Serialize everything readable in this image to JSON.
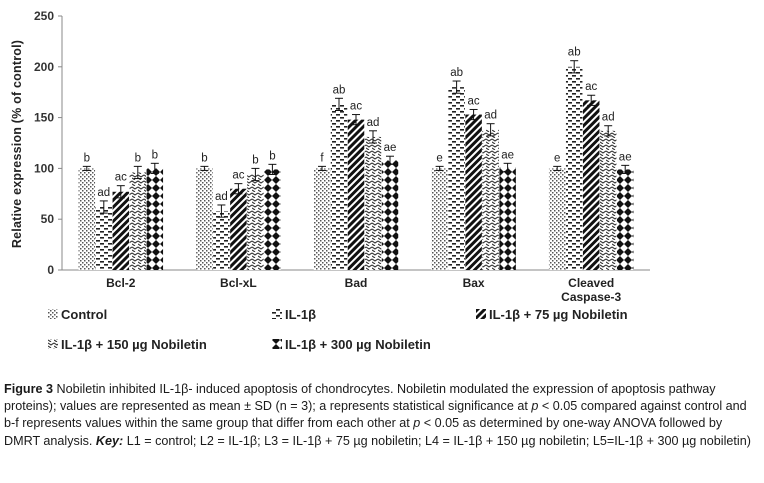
{
  "chart_data": {
    "type": "bar",
    "title": "",
    "xlabel": "",
    "ylabel": "Relative expression (% of control)",
    "ylim": [
      0,
      250
    ],
    "yticks": [
      0,
      50,
      100,
      150,
      200,
      250
    ],
    "grid": false,
    "legend_position": "bottom",
    "categories": [
      "Bcl-2",
      "Bcl-xL",
      "Bad",
      "Bax",
      "Cleaved Caspase-3"
    ],
    "series": [
      {
        "name": "Control",
        "values": [
          100,
          100,
          100,
          100,
          100
        ],
        "errors": [
          2,
          2,
          2,
          2,
          2
        ],
        "labels": [
          "b",
          "b",
          "f",
          "e",
          "e"
        ],
        "pattern": "dots"
      },
      {
        "name": "IL-1β",
        "values": [
          62,
          58,
          163,
          180,
          200
        ],
        "errors": [
          6,
          6,
          6,
          6,
          6
        ],
        "labels": [
          "ad",
          "ad",
          "ab",
          "ab",
          "ab"
        ],
        "pattern": "hdash"
      },
      {
        "name": "IL-1β + 75 µg Nobiletin",
        "values": [
          77,
          80,
          148,
          153,
          167
        ],
        "errors": [
          6,
          5,
          5,
          5,
          5
        ],
        "labels": [
          "ac",
          "ac",
          "ac",
          "ac",
          "ac"
        ],
        "pattern": "diag"
      },
      {
        "name": "IL-1β + 150 µg Nobiletin",
        "values": [
          96,
          94,
          131,
          138,
          137
        ],
        "errors": [
          6,
          6,
          6,
          6,
          5
        ],
        "labels": [
          "b",
          "b",
          "ad",
          "ad",
          "ad"
        ],
        "pattern": "wave"
      },
      {
        "name": "IL-1β + 300 µg Nobiletin",
        "values": [
          100,
          99,
          108,
          101,
          99
        ],
        "errors": [
          5,
          5,
          4,
          4,
          4
        ],
        "labels": [
          "b",
          "b",
          "ae",
          "ae",
          "ae"
        ],
        "pattern": "diamond"
      }
    ]
  },
  "caption": {
    "figure_label": "Figure 3",
    "part1": " Nobiletin inhibited IL-1β- induced apoptosis of chondrocytes. Nobiletin modulated the expression of apoptosis pathway proteins); values are represented as mean ± SD (n = 3); a represents statistical significance at ",
    "p1": "p",
    "part2": " < 0.05 compared against control and b-f represents values within the same group that differ from each other at ",
    "p2": "p",
    "part3": " < 0.05 as determined by one-way ANOVA followed by DMRT analysis. ",
    "key_label": "Key:",
    "part4": " L1 = control; L2 = IL-1β; L3 = IL-1β + 75 µg nobiletin; L4 = IL-1β + 150 µg nobiletin; L5=IL-1β + 300 µg nobiletin)"
  }
}
